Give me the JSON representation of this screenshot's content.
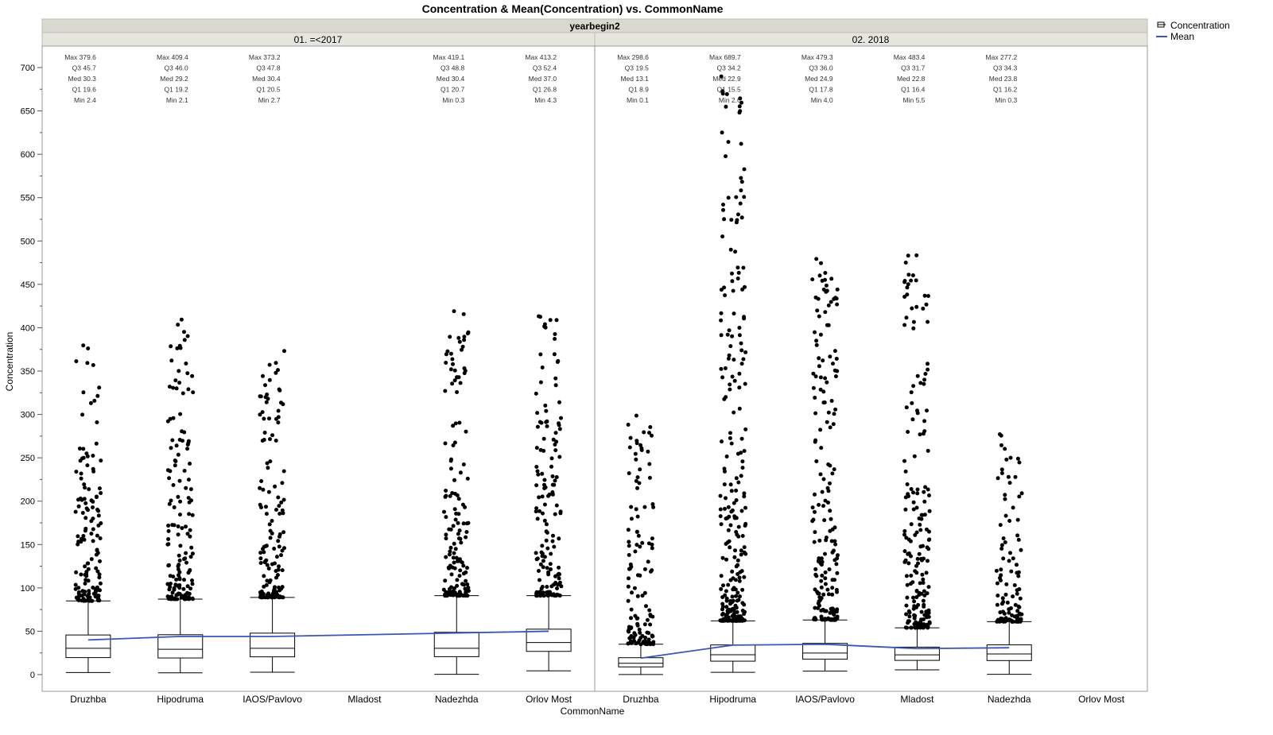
{
  "chart_data": {
    "type": "box",
    "title": "Concentration & Mean(Concentration) vs. CommonName",
    "group_variable": "yearbegin2",
    "xlabel": "CommonName",
    "ylabel": "Concentration",
    "ylim": [
      0,
      700
    ],
    "yticks": [
      0,
      50,
      100,
      150,
      200,
      250,
      300,
      350,
      400,
      450,
      500,
      550,
      600,
      650,
      700
    ],
    "legend": {
      "placement": "top-right",
      "items": [
        {
          "label": "Concentration",
          "kind": "box"
        },
        {
          "label": "Mean",
          "kind": "line",
          "color": "#3a55b4"
        }
      ]
    },
    "colors": {
      "mean_line": "#3a55b4",
      "header_bg": "#d9d9d0",
      "points": "#000000"
    },
    "panels": [
      {
        "label": "01. =<2017",
        "categories": [
          "Druzhba",
          "Hipodruma",
          "IAOS/Pavlovo",
          "Mladost",
          "Nadezhda",
          "Orlov Most"
        ],
        "boxes": [
          {
            "category": "Druzhba",
            "max": 379.6,
            "q3": 45.7,
            "median": 30.3,
            "q1": 19.6,
            "min": 2.4,
            "upper_whisker": 85,
            "mean": 40
          },
          {
            "category": "Hipodruma",
            "max": 409.4,
            "q3": 46.0,
            "median": 29.2,
            "q1": 19.2,
            "min": 2.1,
            "upper_whisker": 87,
            "mean": 44
          },
          {
            "category": "IAOS/Pavlovo",
            "max": 373.2,
            "q3": 47.8,
            "median": 30.4,
            "q1": 20.5,
            "min": 2.7,
            "upper_whisker": 89,
            "mean": 44
          },
          {
            "category": "Mladost",
            "max": null,
            "q3": null,
            "median": null,
            "q1": null,
            "min": null,
            "upper_whisker": null,
            "mean": null
          },
          {
            "category": "Nadezhda",
            "max": 419.1,
            "q3": 48.8,
            "median": 30.4,
            "q1": 20.7,
            "min": 0.3,
            "upper_whisker": 91,
            "mean": 48
          },
          {
            "category": "Orlov Most",
            "max": 413.2,
            "q3": 52.4,
            "median": 37.0,
            "q1": 26.8,
            "min": 4.3,
            "upper_whisker": 91,
            "mean": 50
          }
        ]
      },
      {
        "label": "02. 2018",
        "categories": [
          "Druzhba",
          "Hipodruma",
          "IAOS/Pavlovo",
          "Mladost",
          "Nadezhda",
          "Orlov Most"
        ],
        "boxes": [
          {
            "category": "Druzhba",
            "max": 298.6,
            "q3": 19.5,
            "median": 13.1,
            "q1": 8.9,
            "min": 0.1,
            "upper_whisker": 35,
            "mean": 19
          },
          {
            "category": "Hipodruma",
            "max": 689.7,
            "q3": 34.2,
            "median": 22.9,
            "q1": 15.5,
            "min": 2.6,
            "upper_whisker": 62,
            "mean": 34
          },
          {
            "category": "IAOS/Pavlovo",
            "max": 479.3,
            "q3": 36.0,
            "median": 24.9,
            "q1": 17.8,
            "min": 4.0,
            "upper_whisker": 63,
            "mean": 35
          },
          {
            "category": "Mladost",
            "max": 483.4,
            "q3": 31.7,
            "median": 22.8,
            "q1": 16.4,
            "min": 5.5,
            "upper_whisker": 54,
            "mean": 30
          },
          {
            "category": "Nadezhda",
            "max": 277.2,
            "q3": 34.3,
            "median": 23.8,
            "q1": 16.2,
            "min": 0.3,
            "upper_whisker": 61,
            "mean": 31
          },
          {
            "category": "Orlov Most",
            "max": null,
            "q3": null,
            "median": null,
            "q1": null,
            "min": null,
            "upper_whisker": null,
            "mean": null
          }
        ]
      }
    ]
  }
}
